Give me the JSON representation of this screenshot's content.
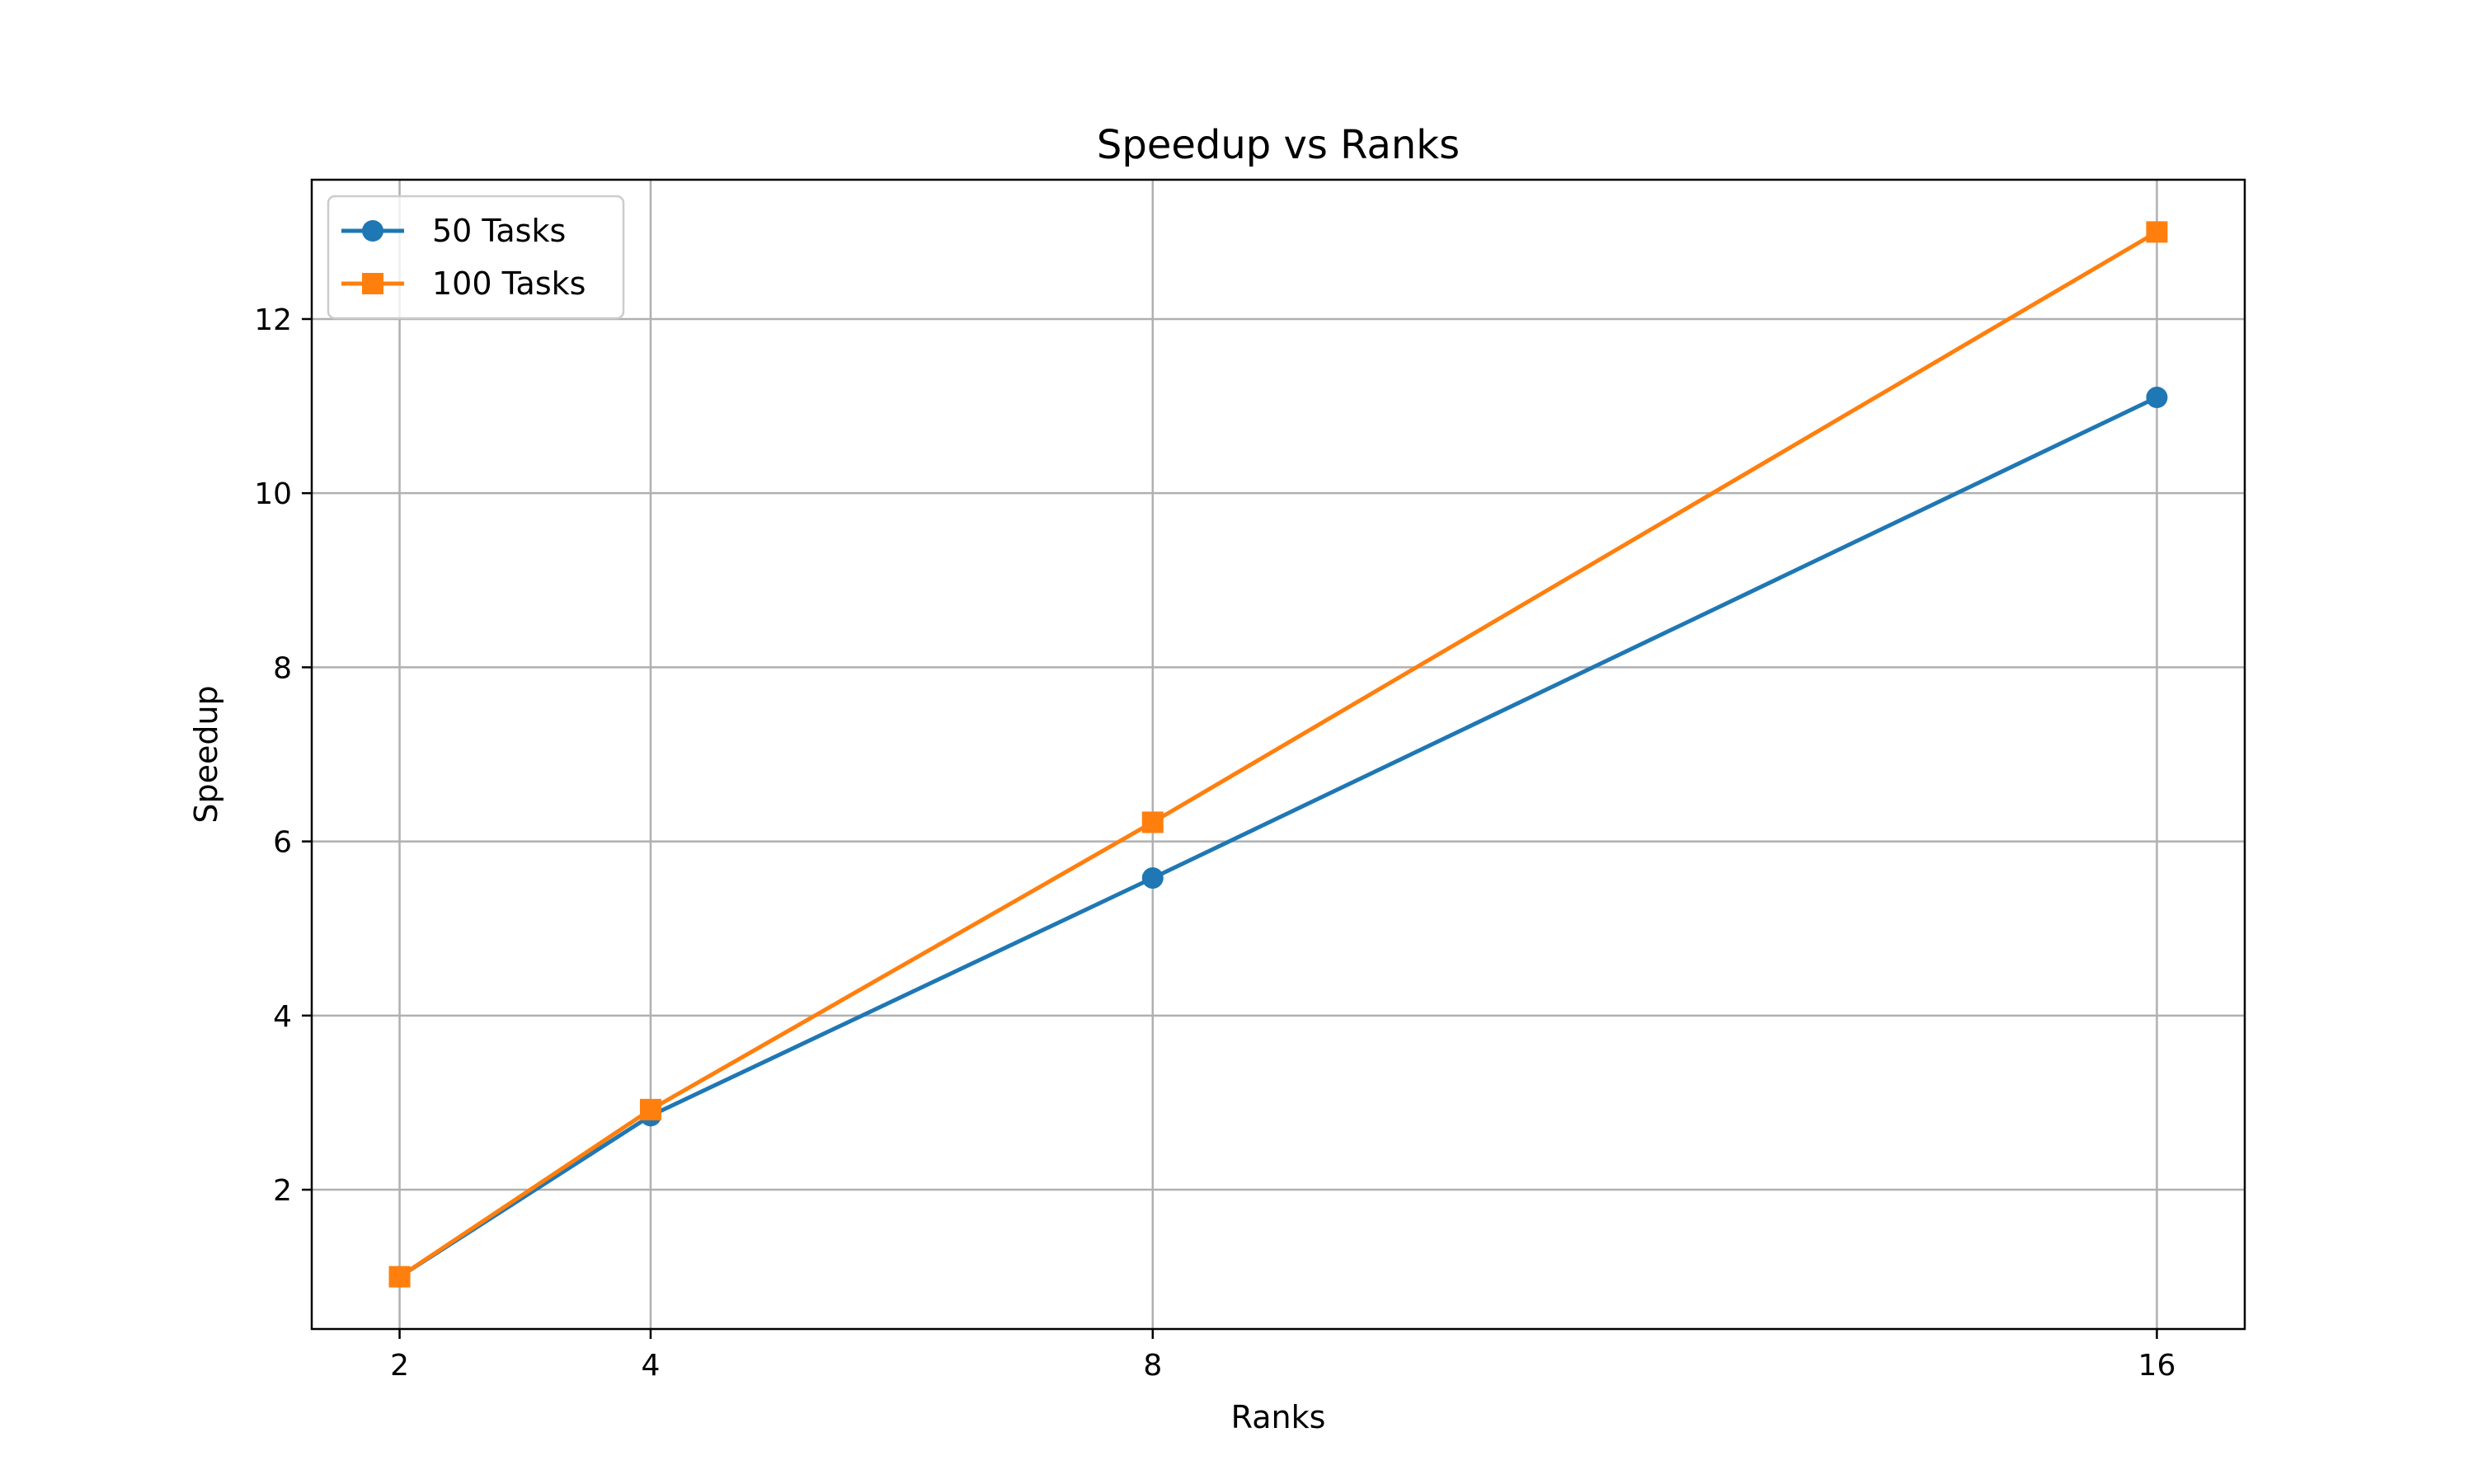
{
  "chart_data": {
    "type": "line",
    "title": "Speedup vs Ranks",
    "xlabel": "Ranks",
    "ylabel": "Speedup",
    "x": [
      2,
      4,
      8,
      16
    ],
    "xticks": [
      "2",
      "4",
      "8",
      "16"
    ],
    "yticks": [
      "2",
      "4",
      "6",
      "8",
      "10",
      "12"
    ],
    "xlim": [
      1.3,
      16.7
    ],
    "ylim": [
      0.4,
      13.6
    ],
    "grid": true,
    "legend_position": "top-left",
    "series": [
      {
        "name": "50 Tasks",
        "values": [
          1.0,
          2.85,
          5.58,
          11.1
        ],
        "color": "#1f77b4",
        "marker": "circle"
      },
      {
        "name": "100 Tasks",
        "values": [
          1.0,
          2.92,
          6.22,
          13.0
        ],
        "color": "#ff7f0e",
        "marker": "square"
      }
    ]
  }
}
